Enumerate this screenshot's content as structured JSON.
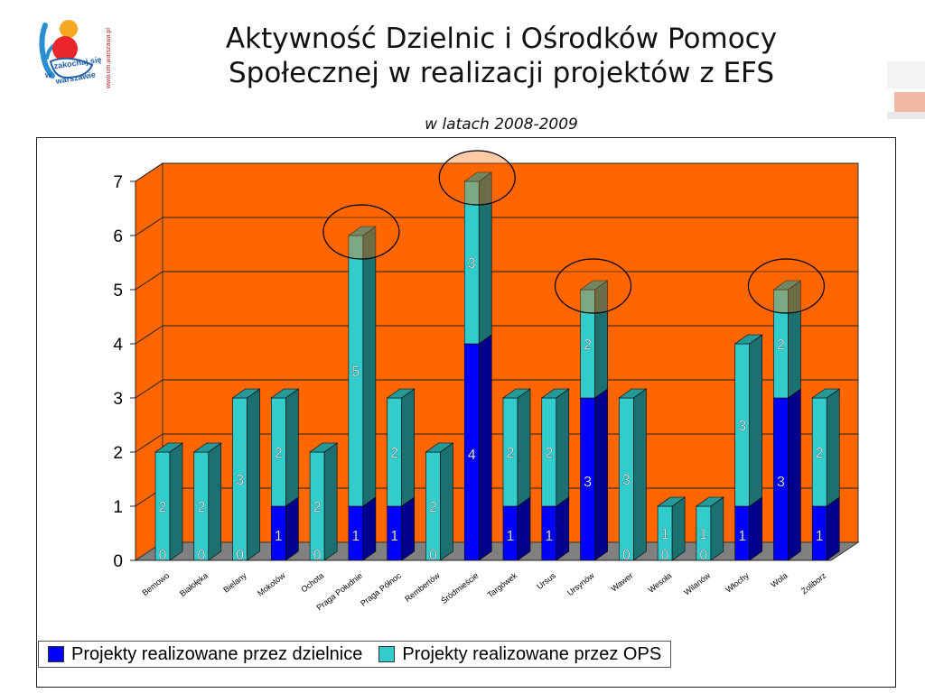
{
  "page": {
    "title_line1": "Aktywność Dzielnic i Ośrodków Pomocy",
    "title_line2": "Społecznej w realizacji projektów z EFS",
    "subtitle": "w latach 2008-2009",
    "logo_text_top": "zakochaj się",
    "logo_text_mid": "w",
    "logo_text_bottom": "warszawie",
    "logo_side_text": "www.um.warszawa.pl"
  },
  "colors": {
    "background_wall": "#FF6600",
    "floor": "#808080",
    "dzielnice": "#0000FF",
    "ops": "#33CCCC",
    "highlight_circle": "#000000"
  },
  "chart_data": {
    "type": "bar",
    "stacked": true,
    "three_d": true,
    "categories": [
      "Bemowo",
      "Białołęka",
      "Bielany",
      "Mokotów",
      "Ochota",
      "Praga Południe",
      "Praga Północ",
      "Rembertów",
      "Śródmieście",
      "Targówek",
      "Ursus",
      "Ursynów",
      "Wawer",
      "Wesoła",
      "Wilanów",
      "Włochy",
      "Wola",
      "Żoliborz"
    ],
    "series": [
      {
        "name": "Projekty realizowane przez dzielnice",
        "values": [
          0,
          0,
          0,
          1,
          0,
          1,
          1,
          0,
          4,
          1,
          1,
          3,
          0,
          0,
          0,
          1,
          3,
          1
        ]
      },
      {
        "name": "Projekty realizowane przez OPS",
        "values": [
          2,
          2,
          3,
          2,
          2,
          5,
          2,
          2,
          3,
          2,
          2,
          2,
          3,
          1,
          1,
          3,
          2,
          2
        ]
      }
    ],
    "yticks": [
      "0",
      "1",
      "2",
      "3",
      "4",
      "5",
      "6",
      "7"
    ],
    "ylim": [
      0,
      7
    ],
    "grid": true,
    "legend_position": "bottom-left",
    "highlighted_categories": [
      "Praga Południe",
      "Śródmieście",
      "Ursynów",
      "Wola"
    ]
  }
}
